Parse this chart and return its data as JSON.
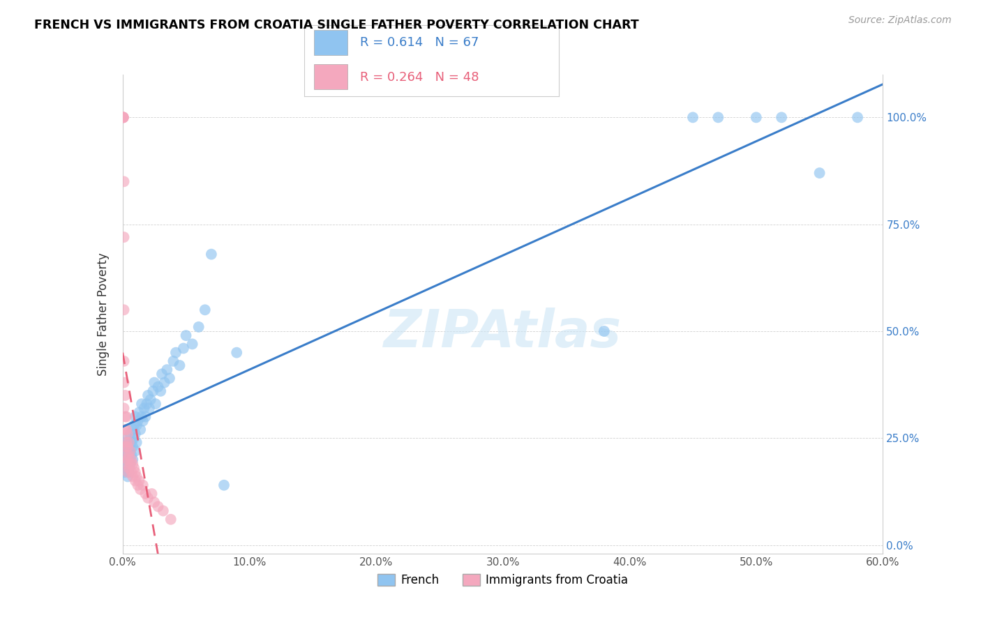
{
  "title": "FRENCH VS IMMIGRANTS FROM CROATIA SINGLE FATHER POVERTY CORRELATION CHART",
  "source": "Source: ZipAtlas.com",
  "ylabel": "Single Father Poverty",
  "xlim": [
    0.0,
    0.6
  ],
  "ylim": [
    -0.02,
    1.1
  ],
  "xticks": [
    0.0,
    0.1,
    0.2,
    0.3,
    0.4,
    0.5,
    0.6
  ],
  "xticklabels": [
    "0.0%",
    "10.0%",
    "20.0%",
    "30.0%",
    "40.0%",
    "50.0%",
    "60.0%"
  ],
  "yticks": [
    0.0,
    0.25,
    0.5,
    0.75,
    1.0
  ],
  "yticklabels_right": [
    "0.0%",
    "25.0%",
    "50.0%",
    "75.0%",
    "100.0%"
  ],
  "legend_blue_r": "R = 0.614",
  "legend_blue_n": "N = 67",
  "legend_pink_r": "R = 0.264",
  "legend_pink_n": "N = 48",
  "legend_label_blue": "French",
  "legend_label_pink": "Immigrants from Croatia",
  "watermark": "ZIPAtlas",
  "blue_color": "#90c4f0",
  "pink_color": "#f4a8be",
  "blue_line_color": "#3a7dc9",
  "pink_line_color": "#e8607a",
  "french_x": [
    0.001,
    0.001,
    0.002,
    0.002,
    0.003,
    0.003,
    0.003,
    0.004,
    0.004,
    0.004,
    0.005,
    0.005,
    0.005,
    0.006,
    0.006,
    0.006,
    0.007,
    0.007,
    0.008,
    0.008,
    0.008,
    0.009,
    0.009,
    0.01,
    0.01,
    0.01,
    0.011,
    0.011,
    0.012,
    0.013,
    0.014,
    0.015,
    0.015,
    0.016,
    0.017,
    0.018,
    0.019,
    0.02,
    0.021,
    0.022,
    0.024,
    0.025,
    0.026,
    0.028,
    0.03,
    0.031,
    0.033,
    0.035,
    0.037,
    0.04,
    0.042,
    0.045,
    0.048,
    0.05,
    0.055,
    0.06,
    0.065,
    0.07,
    0.08,
    0.09,
    0.38,
    0.45,
    0.47,
    0.5,
    0.52,
    0.55,
    0.58
  ],
  "french_y": [
    0.17,
    0.22,
    0.19,
    0.23,
    0.18,
    0.2,
    0.24,
    0.16,
    0.21,
    0.25,
    0.2,
    0.23,
    0.17,
    0.22,
    0.26,
    0.19,
    0.24,
    0.21,
    0.23,
    0.27,
    0.2,
    0.25,
    0.28,
    0.22,
    0.26,
    0.3,
    0.24,
    0.28,
    0.29,
    0.31,
    0.27,
    0.3,
    0.33,
    0.29,
    0.32,
    0.3,
    0.33,
    0.35,
    0.32,
    0.34,
    0.36,
    0.38,
    0.33,
    0.37,
    0.36,
    0.4,
    0.38,
    0.41,
    0.39,
    0.43,
    0.45,
    0.42,
    0.46,
    0.49,
    0.47,
    0.51,
    0.55,
    0.68,
    0.14,
    0.45,
    0.5,
    1.0,
    1.0,
    1.0,
    1.0,
    0.87,
    1.0
  ],
  "croatia_x": [
    0.0005,
    0.0005,
    0.0005,
    0.0005,
    0.0005,
    0.001,
    0.001,
    0.001,
    0.001,
    0.001,
    0.001,
    0.002,
    0.002,
    0.002,
    0.002,
    0.002,
    0.003,
    0.003,
    0.003,
    0.003,
    0.004,
    0.004,
    0.004,
    0.004,
    0.005,
    0.005,
    0.005,
    0.006,
    0.006,
    0.007,
    0.007,
    0.008,
    0.008,
    0.009,
    0.01,
    0.01,
    0.011,
    0.012,
    0.013,
    0.014,
    0.016,
    0.018,
    0.02,
    0.023,
    0.025,
    0.028,
    0.032,
    0.038
  ],
  "croatia_y": [
    1.0,
    1.0,
    1.0,
    1.0,
    1.0,
    0.85,
    0.72,
    0.55,
    0.43,
    0.38,
    0.32,
    0.35,
    0.3,
    0.27,
    0.23,
    0.19,
    0.3,
    0.27,
    0.24,
    0.21,
    0.26,
    0.23,
    0.2,
    0.17,
    0.24,
    0.21,
    0.18,
    0.22,
    0.19,
    0.2,
    0.17,
    0.19,
    0.16,
    0.18,
    0.17,
    0.15,
    0.16,
    0.14,
    0.15,
    0.13,
    0.14,
    0.12,
    0.11,
    0.12,
    0.1,
    0.09,
    0.08,
    0.06
  ]
}
